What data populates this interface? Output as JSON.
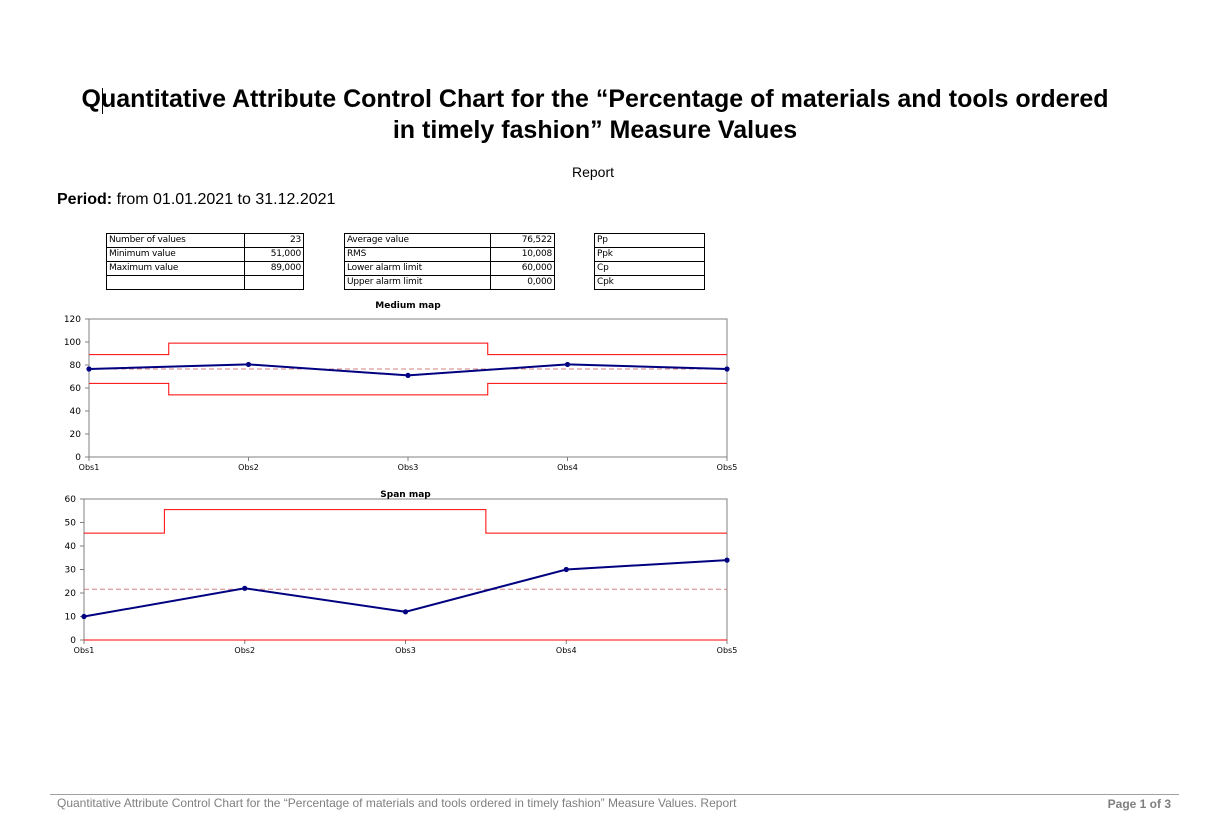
{
  "title": "Quantitative Attribute Control Chart for the “Percentage of materials and tools ordered in timely fashion” Measure Values",
  "subtitle": "Report",
  "period": {
    "label": "Period:",
    "value": "from 01.01.2021  to 31.12.2021"
  },
  "stats_table_1": [
    {
      "label": "Number of values",
      "value": "23"
    },
    {
      "label": "Minimum value",
      "value": "51,000"
    },
    {
      "label": "Maximum value",
      "value": "89,000"
    },
    {
      "label": "",
      "value": ""
    }
  ],
  "stats_table_2": [
    {
      "label": "Average value",
      "value": "76,522"
    },
    {
      "label": "RMS",
      "value": "10,008"
    },
    {
      "label": "Lower alarm limit",
      "value": "60,000"
    },
    {
      "label": "Upper alarm limit",
      "value": "0,000"
    }
  ],
  "stats_table_3": [
    {
      "label": "Pp"
    },
    {
      "label": "Ppk"
    },
    {
      "label": "Cp"
    },
    {
      "label": "Cpk"
    }
  ],
  "colors": {
    "series": "#000080",
    "limits": "#ff0000",
    "mean": "#d08080"
  },
  "chart_data": [
    {
      "type": "line",
      "title": "Medium map",
      "categories": [
        "Obs1",
        "Obs2",
        "Obs3",
        "Obs4",
        "Obs5"
      ],
      "values": [
        76.5,
        80.5,
        71.0,
        80.5,
        76.5
      ],
      "upper_limit_step": [
        89,
        99,
        99,
        89,
        89
      ],
      "lower_limit_step": [
        64,
        54,
        54,
        64,
        64
      ],
      "mean": 76.5,
      "ylim": [
        0,
        120
      ],
      "yticks": [
        0,
        20,
        40,
        60,
        80,
        100,
        120
      ]
    },
    {
      "type": "line",
      "title": "Span map",
      "categories": [
        "Obs1",
        "Obs2",
        "Obs3",
        "Obs4",
        "Obs5"
      ],
      "values": [
        10,
        22,
        12,
        30,
        34
      ],
      "upper_limit_step": [
        45.5,
        55.5,
        55.5,
        45.5,
        45.5
      ],
      "lower_limit_step": [
        0,
        0,
        0,
        0,
        0
      ],
      "mean": 21.6,
      "ylim": [
        0,
        60
      ],
      "yticks": [
        0,
        10,
        20,
        30,
        40,
        50,
        60
      ]
    }
  ],
  "footer": {
    "text": "Quantitative Attribute Control Chart for the “Percentage of materials and tools ordered in timely fashion” Measure Values. Report",
    "page": "Page 1 of 3"
  }
}
